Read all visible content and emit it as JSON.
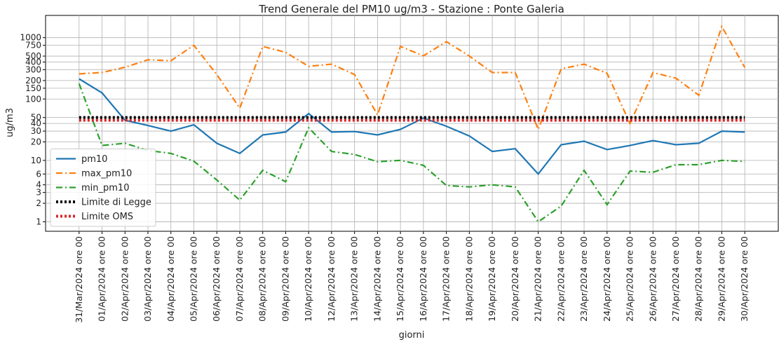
{
  "chart_data": {
    "type": "line",
    "title": "Trend Generale del PM10 ug/m3 - Stazione : Ponte Galeria",
    "xlabel": "giorni",
    "ylabel": "ug/m3",
    "categories": [
      "31/Mar/2024 ore 00",
      "01/Apr/2024 ore 00",
      "02/Apr/2024 ore 00",
      "03/Apr/2024 ore 00",
      "04/Apr/2024 ore 00",
      "05/Apr/2024 ore 00",
      "06/Apr/2024 ore 00",
      "07/Apr/2024 ore 00",
      "08/Apr/2024 ore 00",
      "09/Apr/2024 ore 00",
      "10/Apr/2024 ore 00",
      "12/Apr/2024 ore 00",
      "13/Apr/2024 ore 00",
      "14/Apr/2024 ore 00",
      "15/Apr/2024 ore 00",
      "16/Apr/2024 ore 00",
      "17/Apr/2024 ore 00",
      "18/Apr/2024 ore 00",
      "19/Apr/2024 ore 00",
      "20/Apr/2024 ore 00",
      "21/Apr/2024 ore 00",
      "22/Apr/2024 ore 00",
      "23/Apr/2024 ore 00",
      "24/Apr/2024 ore 00",
      "25/Apr/2024 ore 00",
      "26/Apr/2024 ore 00",
      "27/Apr/2024 ore 00",
      "28/Apr/2024 ore 00",
      "29/Apr/2024 ore 00",
      "30/Apr/2024 ore 00"
    ],
    "series": [
      {
        "name": "pm10",
        "color": "#1f77b4",
        "style": "solid",
        "values": [
          213,
          126,
          45,
          37,
          30,
          38,
          19,
          13,
          26,
          29,
          58,
          29,
          29.5,
          26,
          32,
          49,
          36,
          25,
          14,
          15.5,
          6,
          18,
          20.5,
          15,
          17.5,
          21,
          18,
          19,
          30,
          29
        ]
      },
      {
        "name": "max_pm10",
        "color": "#ff7f0e",
        "style": "dashdot",
        "values": [
          257,
          270,
          330,
          435,
          420,
          750,
          250,
          71,
          720,
          575,
          340,
          370,
          250,
          55,
          720,
          505,
          860,
          500,
          270,
          270,
          32,
          310,
          370,
          262,
          40,
          270,
          218,
          115,
          1520,
          325
        ]
      },
      {
        "name": "min_pm10",
        "color": "#2ca02c",
        "style": "dashdot",
        "values": [
          178,
          17.5,
          19,
          14.5,
          13,
          9.7,
          4.8,
          2.25,
          6.9,
          4.5,
          34,
          14,
          12.5,
          9.5,
          10,
          8.3,
          3.9,
          3.7,
          4,
          3.7,
          1,
          1.8,
          6.9,
          1.9,
          6.7,
          6.4,
          8.5,
          8.5,
          10,
          9.6
        ]
      },
      {
        "name": "Limite di Legge",
        "color": "#000000",
        "style": "dotted",
        "values": [
          50,
          50,
          50,
          50,
          50,
          50,
          50,
          50,
          50,
          50,
          50,
          50,
          50,
          50,
          50,
          50,
          50,
          50,
          50,
          50,
          50,
          50,
          50,
          50,
          50,
          50,
          50,
          50,
          50,
          50
        ]
      },
      {
        "name": "Limite OMS",
        "color": "#d62728",
        "style": "dotted",
        "values": [
          45,
          45,
          45,
          45,
          45,
          45,
          45,
          45,
          45,
          45,
          45,
          45,
          45,
          45,
          45,
          45,
          45,
          45,
          45,
          45,
          45,
          45,
          45,
          45,
          45,
          45,
          45,
          45,
          45,
          45
        ]
      }
    ],
    "ylim": [
      0.7,
      2300
    ],
    "log_y": true,
    "yticks": [
      1,
      2,
      3,
      4,
      6,
      10,
      20,
      30,
      40,
      50,
      100,
      150,
      200,
      300,
      400,
      500,
      750,
      1000
    ],
    "grid": true,
    "legend": "lower left"
  }
}
